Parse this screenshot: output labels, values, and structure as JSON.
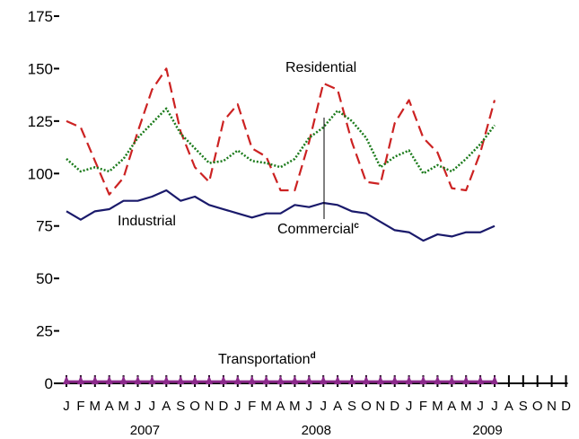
{
  "chart_data": {
    "type": "line",
    "ylim": [
      0,
      175
    ],
    "yticks": [
      0,
      25,
      50,
      75,
      100,
      125,
      150,
      175
    ],
    "month_labels": [
      "J",
      "F",
      "M",
      "A",
      "M",
      "J",
      "J",
      "A",
      "S",
      "O",
      "N",
      "D",
      "J",
      "F",
      "M",
      "A",
      "M",
      "J",
      "J",
      "A",
      "S",
      "O",
      "N",
      "D",
      "J",
      "F",
      "M",
      "A",
      "M",
      "J",
      "J",
      "A",
      "S",
      "O",
      "N",
      "D"
    ],
    "years": [
      {
        "label": "2007",
        "month_index": 5.5
      },
      {
        "label": "2008",
        "month_index": 17.5
      },
      {
        "label": "2009",
        "month_index": 29.5
      }
    ],
    "grid": false,
    "legend": "none",
    "series": [
      {
        "name": "Residential",
        "color": "#cc2222",
        "dash": "dashed",
        "values": [
          125,
          122,
          106,
          90,
          98,
          120,
          140,
          150,
          120,
          103,
          96,
          125,
          133,
          112,
          108,
          92,
          92,
          115,
          143,
          140,
          115,
          96,
          95,
          124,
          135,
          117,
          110,
          93,
          92,
          110,
          135
        ]
      },
      {
        "name": "Commercial",
        "superscript": "c",
        "color": "#1a7a1a",
        "dash": "dotted",
        "values": [
          107,
          101,
          103,
          101,
          107,
          117,
          124,
          131,
          119,
          112,
          105,
          106,
          111,
          106,
          105,
          103,
          107,
          117,
          122,
          130,
          125,
          117,
          103,
          108,
          111,
          100,
          104,
          101,
          107,
          114,
          123
        ]
      },
      {
        "name": "Industrial",
        "color": "#1a1a6b",
        "dash": "solid",
        "values": [
          82,
          78,
          82,
          83,
          87,
          87,
          89,
          92,
          87,
          89,
          85,
          83,
          81,
          79,
          81,
          81,
          85,
          84,
          86,
          85,
          82,
          81,
          77,
          73,
          72,
          68,
          71,
          70,
          72,
          72,
          75
        ]
      },
      {
        "name": "Transportation",
        "superscript": "d",
        "color": "#8b2a8b",
        "marker": "triangle",
        "values": [
          0.8,
          0.8,
          0.8,
          0.8,
          0.8,
          0.8,
          0.8,
          0.8,
          0.8,
          0.8,
          0.8,
          0.8,
          0.8,
          0.8,
          0.8,
          0.8,
          0.8,
          0.8,
          0.8,
          0.8,
          0.8,
          0.8,
          0.8,
          0.8,
          0.8,
          0.8,
          0.8,
          0.8,
          0.8,
          0.8,
          0.8
        ]
      }
    ]
  }
}
